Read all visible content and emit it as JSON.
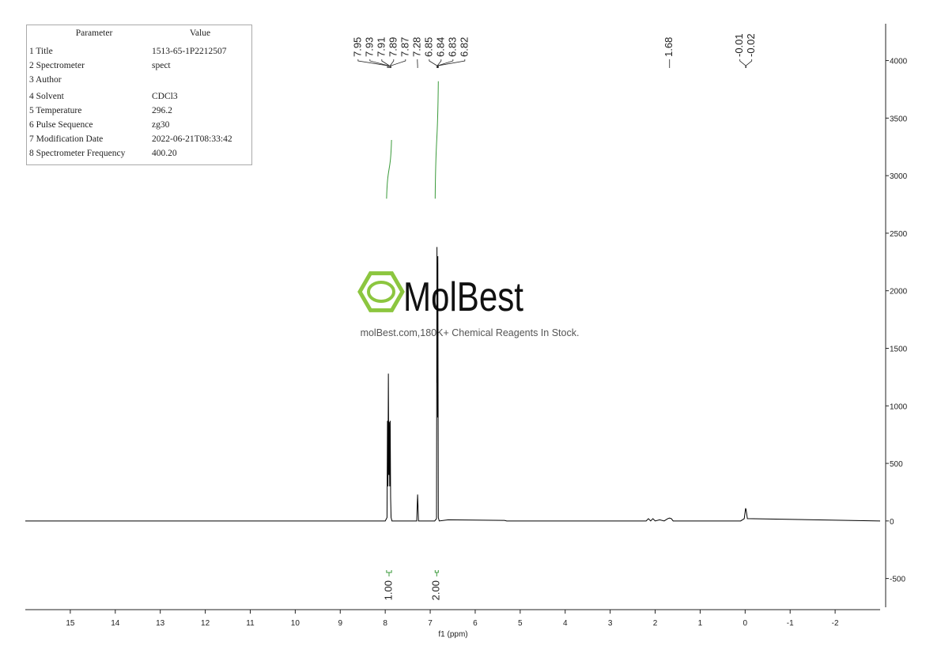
{
  "parameters": {
    "header": [
      "Parameter",
      "Value"
    ],
    "rows": [
      [
        "1 Title",
        "1513-65-1P2212507"
      ],
      [
        "2 Spectrometer",
        "spect"
      ],
      [
        "3 Author"
      ],
      [
        "4 Solvent",
        "CDCl3"
      ],
      [
        "5 Temperature",
        "296.2"
      ],
      [
        "6 Pulse Sequence",
        "zg30"
      ],
      [
        "7 Modification Date",
        "2022-06-21T08:33:42"
      ],
      [
        "8 Spectrometer Frequency",
        "400.20"
      ]
    ]
  },
  "watermark": {
    "brand": "MolBest",
    "tagline": "molBest.com,180K+ Chemical Reagents In Stock."
  },
  "chart_data": {
    "type": "line",
    "x_label": "f1 (ppm)",
    "xlim": [
      16,
      -3
    ],
    "xticks": [
      15,
      14,
      13,
      12,
      11,
      10,
      9,
      8,
      7,
      6,
      5,
      4,
      3,
      2,
      1,
      0,
      -1,
      -2
    ],
    "ylim": [
      -750,
      4320
    ],
    "yticks": [
      -500,
      0,
      500,
      1000,
      1500,
      2000,
      2500,
      3000,
      3500,
      4000
    ],
    "x": [
      16,
      8.0,
      7.96,
      7.95,
      7.94,
      7.93,
      7.92,
      7.91,
      7.9,
      7.89,
      7.88,
      7.87,
      7.85,
      7.3,
      7.28,
      7.26,
      6.9,
      6.86,
      6.85,
      6.845,
      6.84,
      6.835,
      6.83,
      6.82,
      6.8,
      6.6,
      5.35,
      5.3,
      3.6,
      2.2,
      2.15,
      2.1,
      2.05,
      2.0,
      1.9,
      1.8,
      1.72,
      1.68,
      1.64,
      1.6,
      0.1,
      0.02,
      -0.01,
      -0.02,
      -0.05,
      -3
    ],
    "series": [
      {
        "color": "#000000",
        "values": [
          0,
          0,
          30,
          870,
          300,
          1280,
          400,
          860,
          300,
          870,
          200,
          30,
          0,
          0,
          230,
          0,
          0,
          20,
          2380,
          1200,
          2240,
          900,
          2300,
          30,
          0,
          10,
          5,
          0,
          0,
          0,
          20,
          0,
          20,
          0,
          10,
          0,
          20,
          25,
          20,
          0,
          0,
          20,
          110,
          100,
          20,
          0
        ]
      }
    ],
    "peaks": [
      7.95,
      7.93,
      7.91,
      7.89,
      7.87,
      7.28,
      6.85,
      6.84,
      6.83,
      6.82,
      1.68,
      -0.01,
      -0.02
    ],
    "integrals": [
      {
        "x": [
          7.97,
          7.86
        ],
        "y": [
          2800,
          3310
        ],
        "label": "1.00",
        "color": "#3a9a3a"
      },
      {
        "x": [
          6.89,
          6.82
        ],
        "y": [
          2800,
          3820
        ],
        "label": "2.00",
        "color": "#3a9a3a"
      }
    ]
  }
}
